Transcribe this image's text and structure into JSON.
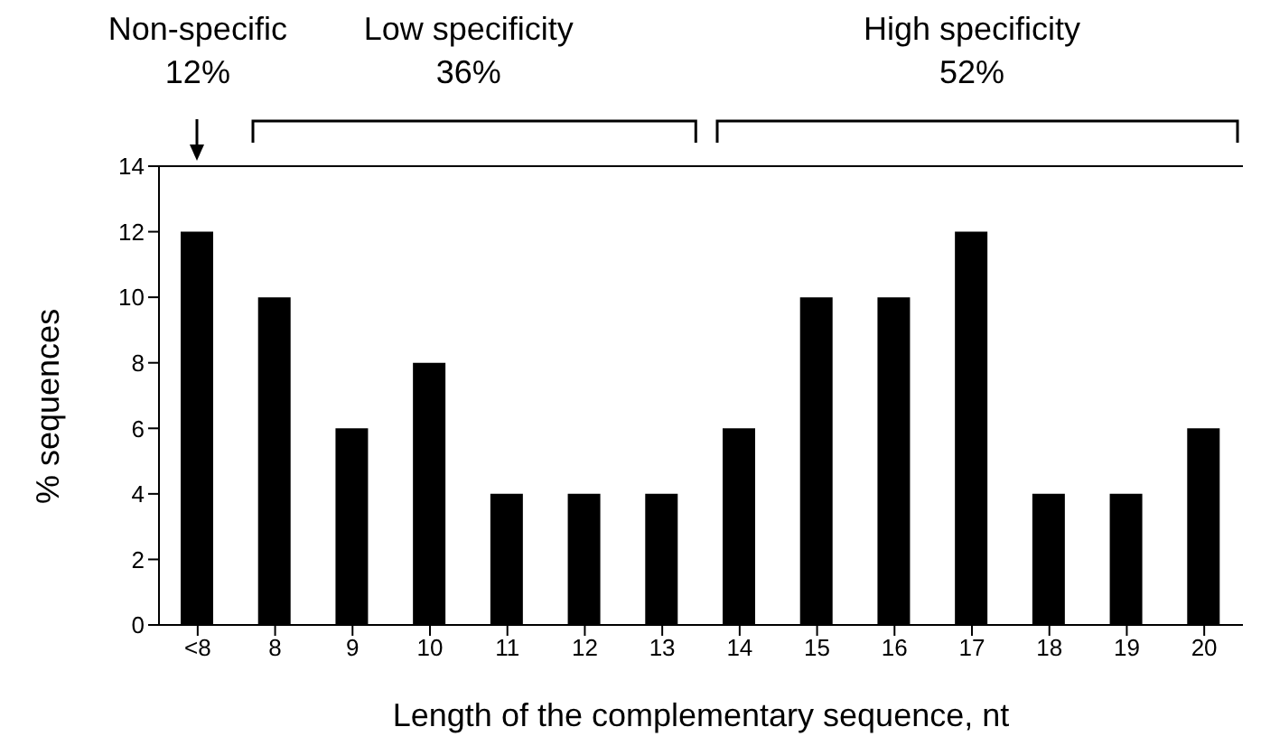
{
  "chart_data": {
    "type": "bar",
    "xlabel": "Length of the complementary sequence, nt",
    "ylabel": "% sequences",
    "categories": [
      "<8",
      "8",
      "9",
      "10",
      "11",
      "12",
      "13",
      "14",
      "15",
      "16",
      "17",
      "18",
      "19",
      "20"
    ],
    "values": [
      12,
      10,
      6,
      8,
      4,
      4,
      4,
      6,
      10,
      10,
      12,
      4,
      4,
      6
    ],
    "color": "#000000",
    "ylim": [
      0,
      14
    ],
    "yticks": [
      0,
      2,
      4,
      6,
      8,
      10,
      12,
      14
    ],
    "grid": false,
    "legend": false,
    "ref_lines": [
      {
        "axis": "y",
        "value": 14,
        "color": "#000000"
      }
    ],
    "annotations": [
      "Non-specific\n12%",
      "Low specificity\n36%",
      "High specificity\n52%"
    ]
  }
}
